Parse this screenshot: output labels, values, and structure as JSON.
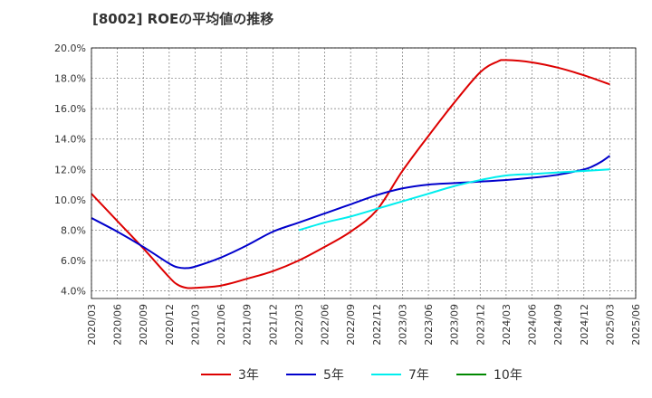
{
  "chart_data": {
    "type": "line",
    "title": "[8002]  ROEの平均値の推移",
    "xlabel": "",
    "ylabel": "",
    "ylim": [
      3.5,
      20.0
    ],
    "y_ticks": [
      "4.0%",
      "6.0%",
      "8.0%",
      "10.0%",
      "12.0%",
      "14.0%",
      "16.0%",
      "18.0%",
      "20.0%"
    ],
    "x_ticks": [
      "2020/03",
      "2020/06",
      "2020/09",
      "2020/12",
      "2021/03",
      "2021/06",
      "2021/09",
      "2021/12",
      "2022/03",
      "2022/06",
      "2022/09",
      "2022/12",
      "2023/03",
      "2023/06",
      "2023/09",
      "2023/12",
      "2024/03",
      "2024/06",
      "2024/09",
      "2024/12",
      "2025/03",
      "2025/06"
    ],
    "grid": true,
    "legend_position": "bottom",
    "series": [
      {
        "name": "3年",
        "color": "#dd0000",
        "points": [
          [
            "2020/03",
            10.4
          ],
          [
            "2020/06",
            8.6
          ],
          [
            "2020/09",
            6.8
          ],
          [
            "2020/12",
            4.9
          ],
          [
            "2021/01",
            4.4
          ],
          [
            "2021/02",
            4.2
          ],
          [
            "2021/03",
            4.2
          ],
          [
            "2021/06",
            4.35
          ],
          [
            "2021/09",
            4.8
          ],
          [
            "2021/12",
            5.3
          ],
          [
            "2022/03",
            6.0
          ],
          [
            "2022/06",
            6.9
          ],
          [
            "2022/09",
            7.9
          ],
          [
            "2022/12",
            9.3
          ],
          [
            "2023/03",
            11.9
          ],
          [
            "2023/06",
            14.2
          ],
          [
            "2023/09",
            16.4
          ],
          [
            "2023/12",
            18.4
          ],
          [
            "2024/02",
            19.1
          ],
          [
            "2024/03",
            19.2
          ],
          [
            "2024/06",
            19.05
          ],
          [
            "2024/09",
            18.7
          ],
          [
            "2024/12",
            18.2
          ],
          [
            "2025/03",
            17.6
          ]
        ]
      },
      {
        "name": "5年",
        "color": "#0000cc",
        "points": [
          [
            "2020/03",
            8.8
          ],
          [
            "2020/06",
            7.9
          ],
          [
            "2020/09",
            6.9
          ],
          [
            "2020/12",
            5.8
          ],
          [
            "2021/01",
            5.55
          ],
          [
            "2021/02",
            5.5
          ],
          [
            "2021/03",
            5.6
          ],
          [
            "2021/06",
            6.2
          ],
          [
            "2021/09",
            7.0
          ],
          [
            "2021/12",
            7.9
          ],
          [
            "2022/03",
            8.5
          ],
          [
            "2022/06",
            9.1
          ],
          [
            "2022/09",
            9.7
          ],
          [
            "2022/12",
            10.3
          ],
          [
            "2023/03",
            10.75
          ],
          [
            "2023/06",
            11.0
          ],
          [
            "2023/09",
            11.1
          ],
          [
            "2023/12",
            11.2
          ],
          [
            "2024/03",
            11.3
          ],
          [
            "2024/06",
            11.45
          ],
          [
            "2024/09",
            11.65
          ],
          [
            "2024/12",
            12.0
          ],
          [
            "2025/01",
            12.2
          ],
          [
            "2025/02",
            12.5
          ],
          [
            "2025/03",
            12.9
          ]
        ]
      },
      {
        "name": "7年",
        "color": "#00eeee",
        "points": [
          [
            "2022/03",
            8.0
          ],
          [
            "2022/06",
            8.5
          ],
          [
            "2022/09",
            8.9
          ],
          [
            "2022/12",
            9.4
          ],
          [
            "2023/03",
            9.9
          ],
          [
            "2023/06",
            10.4
          ],
          [
            "2023/09",
            10.9
          ],
          [
            "2023/12",
            11.3
          ],
          [
            "2024/03",
            11.6
          ],
          [
            "2024/06",
            11.7
          ],
          [
            "2024/09",
            11.8
          ],
          [
            "2024/12",
            11.9
          ],
          [
            "2025/03",
            12.0
          ]
        ]
      },
      {
        "name": "10年",
        "color": "#008800",
        "points": []
      }
    ]
  }
}
